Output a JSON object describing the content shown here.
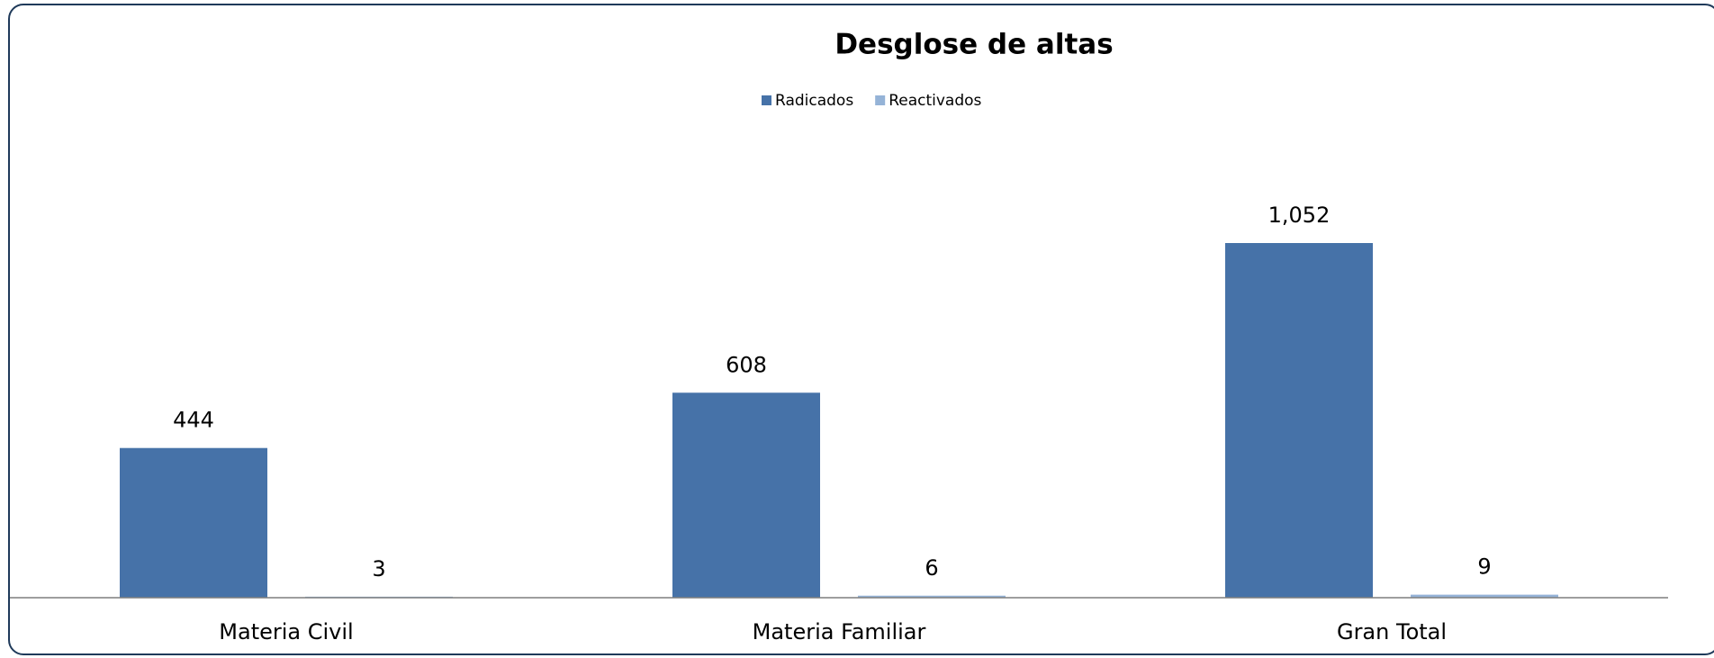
{
  "chart_data": {
    "type": "bar",
    "title": "Desglose de altas",
    "categories": [
      "Materia Civil",
      "Materia Familiar",
      "Gran Total"
    ],
    "series": [
      {
        "name": "Radicados",
        "color": "#4672a8",
        "values": [
          444,
          608,
          1052
        ],
        "value_labels": [
          "444",
          "608",
          "1,052"
        ]
      },
      {
        "name": "Reactivados",
        "color": "#95b3d7",
        "values": [
          3,
          6,
          9
        ]
      }
    ],
    "legend": "top"
  }
}
